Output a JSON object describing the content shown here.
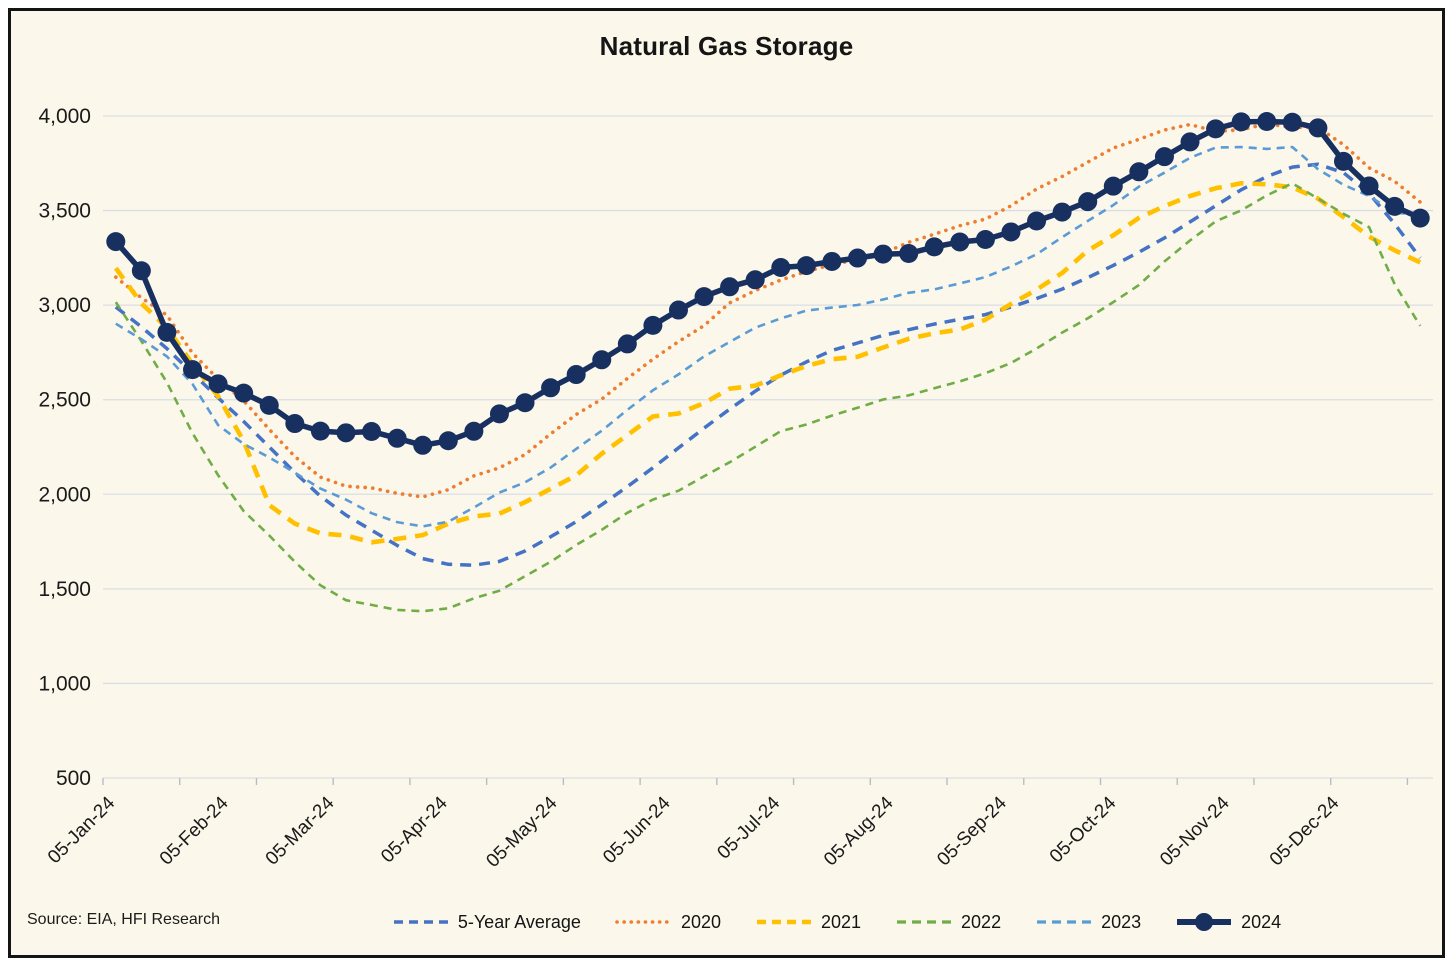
{
  "title": "Natural Gas Storage",
  "source_note": "Source: EIA, HFI Research",
  "panel": {
    "background": "#FBF7EA",
    "border_color": "#141414",
    "gridline_color": "#DADEE4",
    "tick_color": "#B8BDC5",
    "text_color": "#1A1A1A"
  },
  "chart_data": {
    "type": "line",
    "title": "Natural Gas Storage",
    "xlabel": "",
    "ylabel": "",
    "ylim": [
      500,
      4000
    ],
    "ytick_step": 500,
    "grid": "horizontal",
    "legend_position": "bottom",
    "y_tick_labels": [
      "500",
      "1,000",
      "1,500",
      "2,000",
      "2,500",
      "3,000",
      "3,500",
      "4,000"
    ],
    "y_tick_values": [
      500,
      1000,
      1500,
      2000,
      2500,
      3000,
      3500,
      4000
    ],
    "weeks": 52,
    "x_tick_every_weeks": 3,
    "x_tick_labels": [
      {
        "label": "05-Jan-24",
        "week": 0
      },
      {
        "label": "05-Feb-24",
        "week": 4.43
      },
      {
        "label": "05-Mar-24",
        "week": 8.57
      },
      {
        "label": "05-Apr-24",
        "week": 13.0
      },
      {
        "label": "05-May-24",
        "week": 17.29
      },
      {
        "label": "05-Jun-24",
        "week": 21.71
      },
      {
        "label": "05-Jul-24",
        "week": 26.0
      },
      {
        "label": "05-Aug-24",
        "week": 30.43
      },
      {
        "label": "05-Sep-24",
        "week": 34.86
      },
      {
        "label": "05-Oct-24",
        "week": 39.14
      },
      {
        "label": "05-Nov-24",
        "week": 43.57
      },
      {
        "label": "05-Dec-24",
        "week": 47.86
      }
    ],
    "series": [
      {
        "name": "5-Year Average",
        "color": "#4472C4",
        "style": "dashed",
        "width": 3.5,
        "dash": "11 8",
        "markers": false,
        "values": [
          2990,
          2885,
          2770,
          2640,
          2510,
          2385,
          2250,
          2115,
          1990,
          1890,
          1810,
          1730,
          1660,
          1630,
          1625,
          1645,
          1700,
          1775,
          1855,
          1945,
          2040,
          2140,
          2245,
          2350,
          2450,
          2545,
          2630,
          2700,
          2760,
          2800,
          2840,
          2870,
          2900,
          2925,
          2950,
          2990,
          3035,
          3085,
          3145,
          3210,
          3280,
          3355,
          3440,
          3525,
          3610,
          3680,
          3730,
          3745,
          3700,
          3590,
          3430,
          3250
        ]
      },
      {
        "name": "2020",
        "color": "#ED7D31",
        "style": "dotted",
        "width": 3.6,
        "dash": "0.1 7.5",
        "markers": false,
        "values": [
          3148,
          3039,
          2947,
          2746,
          2609,
          2494,
          2343,
          2200,
          2091,
          2043,
          2034,
          2005,
          1986,
          2024,
          2097,
          2140,
          2210,
          2319,
          2422,
          2503,
          2612,
          2714,
          2807,
          2892,
          3012,
          3077,
          3133,
          3178,
          3215,
          3241,
          3274,
          3332,
          3375,
          3420,
          3455,
          3525,
          3614,
          3680,
          3756,
          3831,
          3877,
          3926,
          3955,
          3919,
          3927,
          3958,
          3940,
          3939,
          3848,
          3726,
          3655,
          3545
        ]
      },
      {
        "name": "2021",
        "color": "#FFC000",
        "style": "dashed",
        "width": 4.6,
        "dash": "13 9",
        "markers": false,
        "values": [
          3196,
          3009,
          2881,
          2689,
          2518,
          2281,
          1943,
          1845,
          1793,
          1782,
          1746,
          1764,
          1784,
          1845,
          1883,
          1898,
          1958,
          2029,
          2100,
          2215,
          2313,
          2411,
          2427,
          2482,
          2558,
          2574,
          2629,
          2678,
          2714,
          2727,
          2776,
          2822,
          2851,
          2871,
          2923,
          3006,
          3082,
          3170,
          3288,
          3369,
          3461,
          3523,
          3577,
          3618,
          3644,
          3639,
          3623,
          3564,
          3466,
          3362,
          3290,
          3226
        ]
      },
      {
        "name": "2022",
        "color": "#70AD47",
        "style": "dashed",
        "width": 2.6,
        "dash": "8 6",
        "markers": false,
        "values": [
          3016,
          2810,
          2591,
          2323,
          2101,
          1911,
          1782,
          1643,
          1519,
          1440,
          1415,
          1389,
          1382,
          1397,
          1450,
          1490,
          1567,
          1643,
          1732,
          1812,
          1902,
          1972,
          2019,
          2095,
          2169,
          2251,
          2334,
          2369,
          2416,
          2457,
          2501,
          2523,
          2561,
          2597,
          2640,
          2694,
          2771,
          2855,
          2930,
          3016,
          3106,
          3231,
          3342,
          3443,
          3501,
          3580,
          3644,
          3564,
          3483,
          3412,
          3112,
          2891
        ]
      },
      {
        "name": "2023",
        "color": "#5B9BD5",
        "style": "dashed",
        "width": 2.6,
        "dash": "8 6",
        "markers": false,
        "values": [
          2902,
          2820,
          2729,
          2583,
          2366,
          2266,
          2195,
          2114,
          2030,
          1972,
          1900,
          1853,
          1830,
          1855,
          1930,
          2009,
          2063,
          2141,
          2240,
          2336,
          2446,
          2550,
          2634,
          2729,
          2805,
          2881,
          2930,
          2971,
          2987,
          3001,
          3030,
          3065,
          3083,
          3115,
          3148,
          3205,
          3269,
          3359,
          3445,
          3529,
          3626,
          3700,
          3779,
          3833,
          3836,
          3826,
          3836,
          3719,
          3636,
          3577,
          3490,
          3476
        ]
      },
      {
        "name": "2024",
        "color": "#17305F",
        "style": "solid",
        "width": 5.5,
        "dash": "",
        "markers": true,
        "marker_radius": 9.5,
        "values": [
          3336,
          3182,
          2856,
          2659,
          2584,
          2535,
          2470,
          2374,
          2334,
          2325,
          2332,
          2296,
          2259,
          2283,
          2333,
          2425,
          2484,
          2563,
          2633,
          2711,
          2795,
          2893,
          2974,
          3045,
          3097,
          3134,
          3199,
          3209,
          3231,
          3249,
          3270,
          3273,
          3308,
          3334,
          3347,
          3387,
          3445,
          3492,
          3547,
          3629,
          3705,
          3785,
          3863,
          3932,
          3969,
          3971,
          3967,
          3937,
          3760,
          3630,
          3522,
          3460
        ]
      }
    ]
  }
}
